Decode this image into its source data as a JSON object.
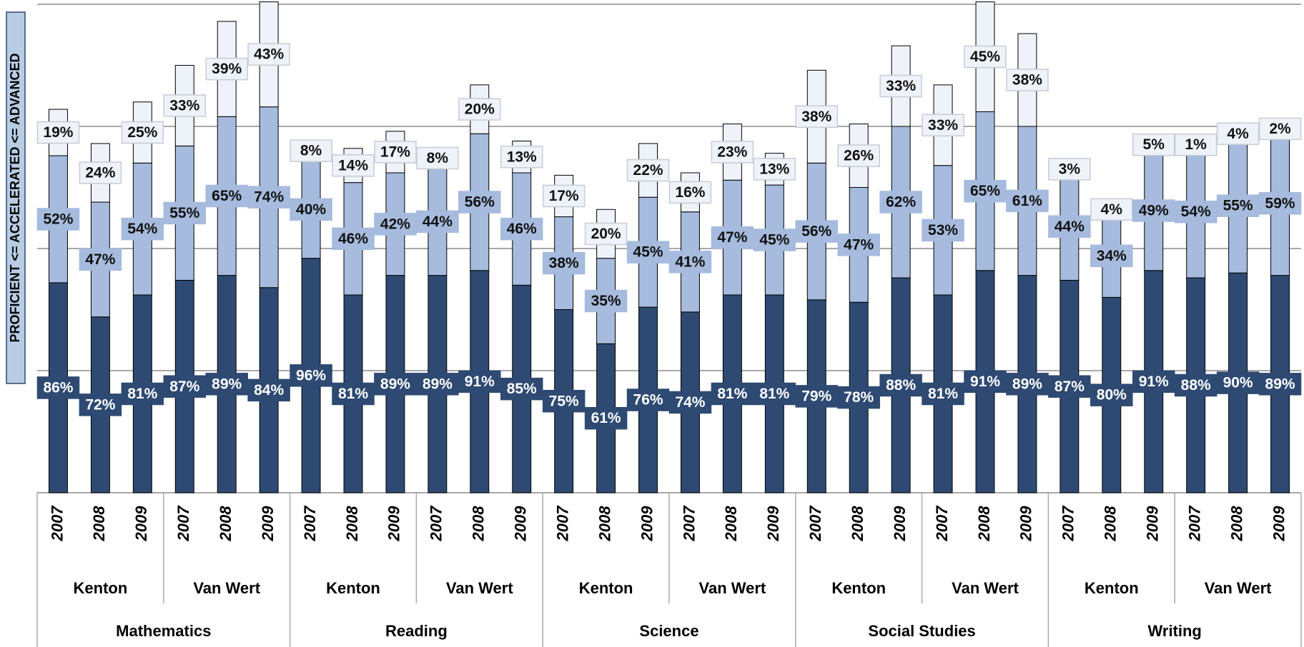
{
  "chart_data": {
    "type": "stacked_bar",
    "y_label": "PROFICIENT <= ACCELERATED <= ADVANCED",
    "categories": [
      "2007",
      "2008",
      "2009",
      "2007",
      "2008",
      "2009",
      "2007",
      "2008",
      "2009",
      "2007",
      "2008",
      "2009",
      "2007",
      "2008",
      "2009",
      "2007",
      "2008",
      "2009",
      "2007",
      "2008",
      "2009",
      "2007",
      "2008",
      "2009",
      "2007",
      "2008",
      "2009",
      "2007",
      "2008",
      "2009"
    ],
    "schools": [
      "Kenton",
      "Van Wert",
      "Kenton",
      "Van Wert",
      "Kenton",
      "Van Wert",
      "Kenton",
      "Van Wert",
      "Kenton",
      "Van Wert"
    ],
    "subjects": [
      "Mathematics",
      "Reading",
      "Science",
      "Social Studies",
      "Writing"
    ],
    "series": [
      {
        "color": "#2e4a72",
        "label_color": "#ffffff",
        "values": [
          86,
          72,
          81,
          87,
          89,
          84,
          96,
          81,
          89,
          89,
          91,
          85,
          75,
          61,
          76,
          74,
          81,
          81,
          79,
          78,
          88,
          81,
          91,
          89,
          87,
          80,
          91,
          88,
          90,
          89
        ],
        "value_labels": [
          "86%",
          "72%",
          "81%",
          "87%",
          "89%",
          "84%",
          "96%",
          "81%",
          "89%",
          "89%",
          "91%",
          "85%",
          "75%",
          "61%",
          "76%",
          "74%",
          "81%",
          "81%",
          "79%",
          "78%",
          "88%",
          "81%",
          "91%",
          "89%",
          "87%",
          "80%",
          "91%",
          "88%",
          "90%",
          "89%"
        ]
      },
      {
        "color": "#a6bbdd",
        "label_color": "#111111",
        "values": [
          52,
          47,
          54,
          55,
          65,
          74,
          40,
          46,
          42,
          44,
          56,
          46,
          38,
          35,
          45,
          41,
          47,
          45,
          56,
          47,
          62,
          53,
          65,
          61,
          44,
          34,
          49,
          54,
          55,
          59
        ],
        "value_labels": [
          "52%",
          "47%",
          "54%",
          "55%",
          "65%",
          "74%",
          "40%",
          "46%",
          "42%",
          "44%",
          "56%",
          "46%",
          "38%",
          "35%",
          "45%",
          "41%",
          "47%",
          "45%",
          "56%",
          "47%",
          "62%",
          "53%",
          "65%",
          "61%",
          "44%",
          "34%",
          "49%",
          "54%",
          "55%",
          "59%"
        ]
      },
      {
        "color": "#eef2f9",
        "label_color": "#111111",
        "values": [
          19,
          24,
          25,
          33,
          39,
          43,
          8,
          14,
          17,
          8,
          20,
          13,
          17,
          20,
          22,
          16,
          23,
          13,
          38,
          26,
          33,
          33,
          45,
          38,
          3,
          4,
          5,
          1,
          4,
          2
        ],
        "value_labels": [
          "19%",
          "24%",
          "25%",
          "33%",
          "39%",
          "43%",
          "8%",
          "14%",
          "17%",
          "8%",
          "20%",
          "13%",
          "17%",
          "20%",
          "22%",
          "16%",
          "23%",
          "13%",
          "38%",
          "26%",
          "33%",
          "33%",
          "45%",
          "38%",
          "3%",
          "4%",
          "5%",
          "1%",
          "4%",
          "2%"
        ]
      }
    ],
    "ylim": [
      0,
      200
    ],
    "yticks": [
      0,
      50,
      100,
      150,
      200
    ],
    "grid": true
  }
}
